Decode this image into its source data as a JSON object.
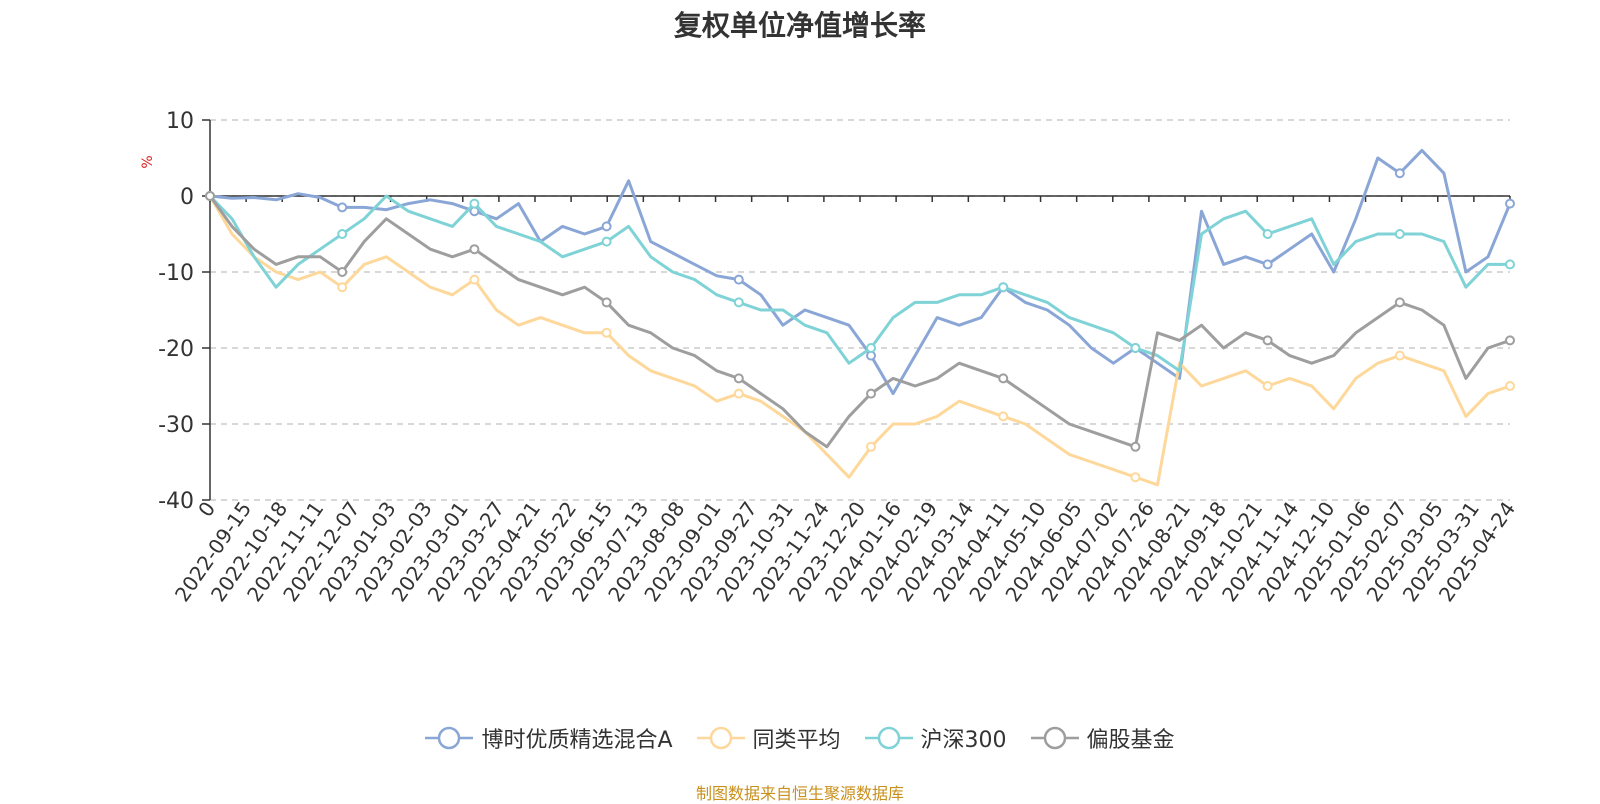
{
  "chart_data": {
    "type": "line",
    "title": "复权单位净值增长率",
    "ylabel": "%",
    "ylim": [
      -40,
      10
    ],
    "yticks": [
      10,
      0,
      -10,
      -20,
      -30,
      -40
    ],
    "grid": "horizontal-dashed",
    "legend_position": "bottom",
    "x_tick_labels": [
      "0",
      "2022-09-15",
      "2022-10-18",
      "2022-11-11",
      "2022-12-07",
      "2023-01-03",
      "2023-02-03",
      "2023-03-01",
      "2023-03-27",
      "2023-04-21",
      "2023-05-22",
      "2023-06-15",
      "2023-07-13",
      "2023-08-08",
      "2023-09-01",
      "2023-09-27",
      "2023-10-31",
      "2023-11-24",
      "2023-12-20",
      "2024-01-16",
      "2024-02-19",
      "2024-03-14",
      "2024-04-11",
      "2024-05-10",
      "2024-06-05",
      "2024-07-02",
      "2024-07-26",
      "2024-08-21",
      "2024-09-18",
      "2024-10-21",
      "2024-11-14",
      "2024-12-10",
      "2025-01-06",
      "2025-02-07",
      "2025-03-05",
      "2025-03-31",
      "2025-04-24"
    ],
    "series": [
      {
        "name": "博时优质精选混合A",
        "color": "#8aa6d6",
        "values": [
          0,
          -0.3,
          -0.2,
          -0.5,
          0.3,
          -0.2,
          -1.5,
          -1.5,
          -1.8,
          -1.0,
          -0.5,
          -1.0,
          -2.0,
          -3.0,
          -1.0,
          -6.0,
          -4.0,
          -5.0,
          -4.0,
          2.0,
          -6.0,
          -7.5,
          -9.0,
          -10.5,
          -11.0,
          -13.0,
          -17.0,
          -15.0,
          -16.0,
          -17.0,
          -21.0,
          -26.0,
          -21.0,
          -16.0,
          -17.0,
          -16.0,
          -12.0,
          -14.0,
          -15.0,
          -17.0,
          -20.0,
          -22.0,
          -20.0,
          -22.0,
          -24.0,
          -2.0,
          -9.0,
          -8.0,
          -9.0,
          -7.0,
          -5.0,
          -10.0,
          -3.0,
          5.0,
          3.0,
          6.0,
          3.0,
          -10.0,
          -8.0,
          -1.0
        ]
      },
      {
        "name": "同类平均",
        "color": "#fdd89a",
        "values": [
          0,
          -5,
          -8,
          -10,
          -11,
          -10,
          -12,
          -9,
          -8,
          -10,
          -12,
          -13,
          -11,
          -15,
          -17,
          -16,
          -17,
          -18,
          -18,
          -21,
          -23,
          -24,
          -25,
          -27,
          -26,
          -27,
          -29,
          -31,
          -34,
          -37,
          -33,
          -30,
          -30,
          -29,
          -27,
          -28,
          -29,
          -30,
          -32,
          -34,
          -35,
          -36,
          -37,
          -38,
          -22,
          -25,
          -24,
          -23,
          -25,
          -24,
          -25,
          -28,
          -24,
          -22,
          -21,
          -22,
          -23,
          -29,
          -26,
          -25
        ]
      },
      {
        "name": "沪深300",
        "color": "#7fd3d7",
        "values": [
          0,
          -3,
          -8,
          -12,
          -9,
          -7,
          -5,
          -3,
          0,
          -2,
          -3,
          -4,
          -1,
          -4,
          -5,
          -6,
          -8,
          -7,
          -6,
          -4,
          -8,
          -10,
          -11,
          -13,
          -14,
          -15,
          -15,
          -17,
          -18,
          -22,
          -20,
          -16,
          -14,
          -14,
          -13,
          -13,
          -12,
          -13,
          -14,
          -16,
          -17,
          -18,
          -20,
          -21,
          -23,
          -5,
          -3,
          -2,
          -5,
          -4,
          -3,
          -9,
          -6,
          -5,
          -5,
          -5,
          -6,
          -12,
          -9,
          -9
        ]
      },
      {
        "name": "偏股基金",
        "color": "#9e9e9e",
        "values": [
          0,
          -4,
          -7,
          -9,
          -8,
          -8,
          -10,
          -6,
          -3,
          -5,
          -7,
          -8,
          -7,
          -9,
          -11,
          -12,
          -13,
          -12,
          -14,
          -17,
          -18,
          -20,
          -21,
          -23,
          -24,
          -26,
          -28,
          -31,
          -33,
          -29,
          -26,
          -24,
          -25,
          -24,
          -22,
          -23,
          -24,
          -26,
          -28,
          -30,
          -31,
          -32,
          -33,
          -18,
          -19,
          -17,
          -20,
          -18,
          -19,
          -21,
          -22,
          -21,
          -18,
          -16,
          -14,
          -15,
          -17,
          -24,
          -20,
          -19
        ]
      }
    ]
  },
  "source_note": "制图数据来自恒生聚源数据库"
}
